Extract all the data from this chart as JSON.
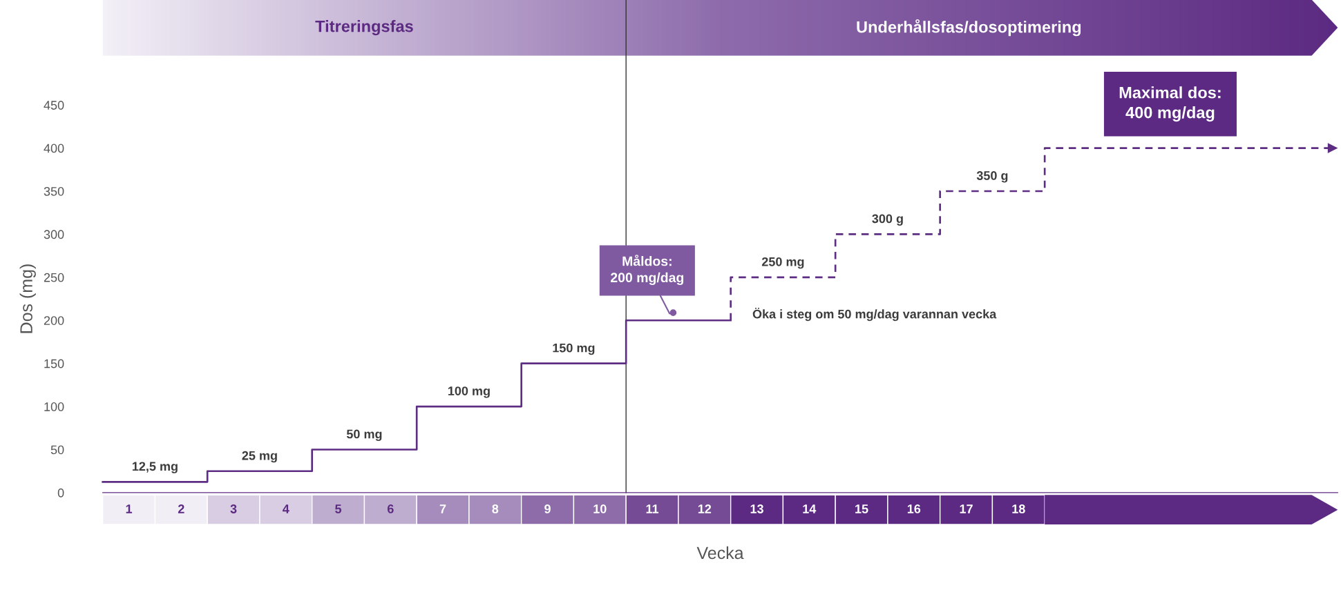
{
  "chart_data": {
    "type": "step",
    "xlabel": "Vecka",
    "ylabel": "Dos (mg)",
    "xlim": [
      0.5,
      24.1
    ],
    "xticks": [
      1,
      2,
      3,
      4,
      5,
      6,
      7,
      8,
      9,
      10,
      11,
      12,
      13,
      14,
      15,
      16,
      17,
      18
    ],
    "ylim": [
      0,
      450
    ],
    "yticks": [
      0,
      50,
      100,
      150,
      200,
      250,
      300,
      350,
      400,
      450
    ],
    "series": [
      {
        "x": [
          0.5,
          2.5,
          4.5,
          6.5,
          8.5,
          10.5,
          12.5
        ],
        "values": [
          12.5,
          25,
          50,
          100,
          150,
          200,
          200
        ],
        "color": "#5c2d83",
        "line_style": "solid"
      },
      {
        "x": [
          12.5,
          12.5,
          14.5,
          16.5,
          18.5,
          24
        ],
        "values": [
          200,
          250,
          300,
          350,
          400,
          400
        ],
        "color": "#5c2d83",
        "line_style": "dashed"
      }
    ],
    "ref_lines": [
      {
        "axis": "x",
        "value": 10.5,
        "color": "#333333"
      }
    ],
    "annotations": [
      "Titreringsfas",
      "Underhållsfas/dosoptimering",
      {
        "text": "12,5 mg",
        "x": 1.5,
        "y": 12.5
      },
      {
        "text": "25 mg",
        "x": 3.5,
        "y": 25
      },
      {
        "text": "50 mg",
        "x": 5.5,
        "y": 50
      },
      {
        "text": "100 mg",
        "x": 7.5,
        "y": 100
      },
      {
        "text": "150 mg",
        "x": 9.5,
        "y": 150
      },
      {
        "text": "250 mg",
        "x": 13.5,
        "y": 250
      },
      {
        "text": "300 g",
        "x": 15.5,
        "y": 300
      },
      {
        "text": "350 g",
        "x": 17.5,
        "y": 350
      },
      {
        "text": "Måldos:\n200 mg/dag",
        "x": 11.4,
        "y": 200
      },
      {
        "text": "Maximal dos:\n400 mg/dag",
        "x": 20.9,
        "y": 400
      },
      "Öka i steg om 50 mg/dag varannan vecka"
    ],
    "grid": false,
    "legend": false,
    "marker": "none"
  }
}
